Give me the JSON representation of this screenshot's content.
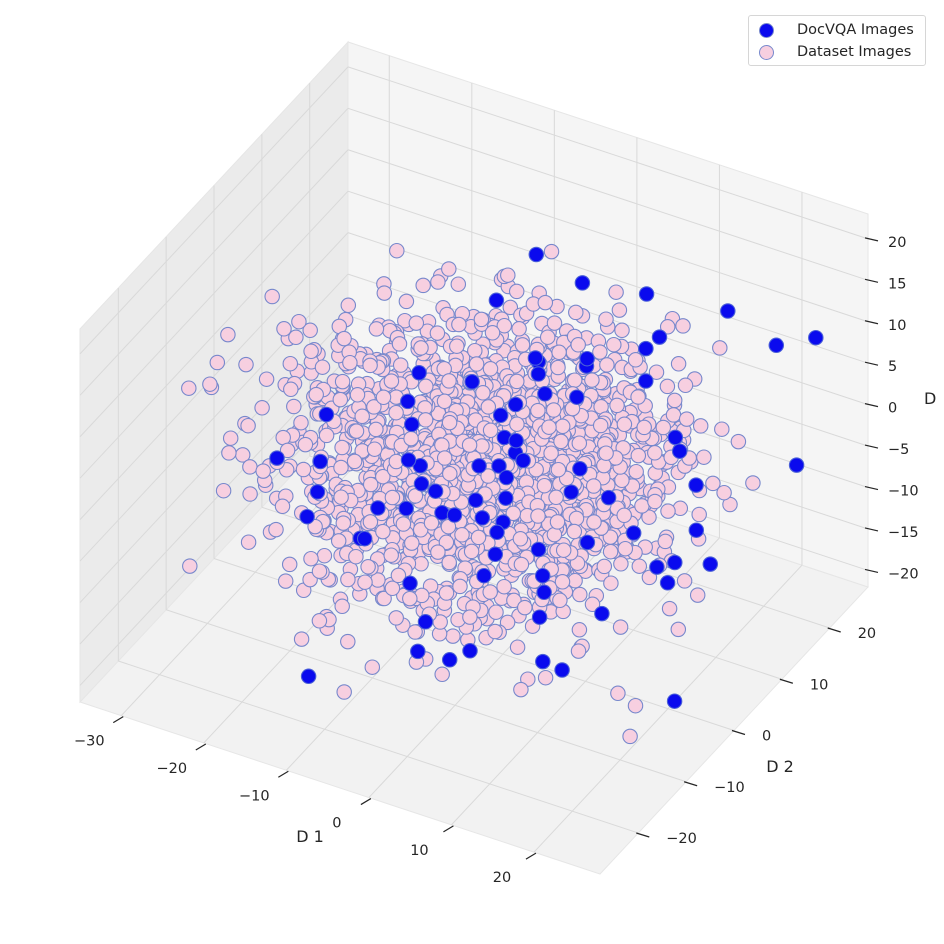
{
  "chart_data": {
    "type": "scatter",
    "projection": "3d",
    "title": "",
    "xlabel": "D 1",
    "ylabel": "D 2",
    "zlabel": "D",
    "xlim": [
      -35,
      28
    ],
    "ylim": [
      -28,
      28
    ],
    "zlim": [
      -22,
      23
    ],
    "x_ticks": [
      -30,
      -20,
      -10,
      0,
      10,
      20
    ],
    "y_ticks": [
      -20,
      -10,
      0,
      10,
      20
    ],
    "z_ticks": [
      -20,
      -15,
      -10,
      -5,
      0,
      5,
      10,
      15,
      20
    ],
    "x_tick_labels": [
      "−30",
      "−20",
      "−10",
      "0",
      "10",
      "20"
    ],
    "y_tick_labels": [
      "−20",
      "−10",
      "0",
      "10",
      "20"
    ],
    "z_tick_labels": [
      "−20",
      "−15",
      "−10",
      "−5",
      "0",
      "5",
      "10",
      "15",
      "20"
    ],
    "grid": true,
    "legend_position": "top-right",
    "series": [
      {
        "name": "Dataset Images",
        "color": "#f7cfe0",
        "edge_color": "#7788cc",
        "n_points": 2000,
        "distribution": {
          "x_mean": -2,
          "x_std": 10,
          "x_range": [
            -30,
            24
          ],
          "y_mean": 0,
          "y_std": 9,
          "y_range": [
            -25,
            24
          ],
          "z_mean": 0,
          "z_std": 6,
          "z_range": [
            -18,
            20
          ]
        }
      },
      {
        "name": "DocVQA Images",
        "color": "#0a0aee",
        "edge_color": "#4a5fd8",
        "n_points": 80,
        "distribution": {
          "x_mean": 4,
          "x_std": 12,
          "x_range": [
            -28,
            24
          ],
          "y_mean": 0,
          "y_std": 12,
          "y_range": [
            -25,
            24
          ],
          "z_mean": 0,
          "z_std": 8,
          "z_range": [
            -18,
            20
          ]
        }
      }
    ],
    "legend": {
      "entries": [
        "DocVQA Images",
        "Dataset Images"
      ]
    }
  }
}
